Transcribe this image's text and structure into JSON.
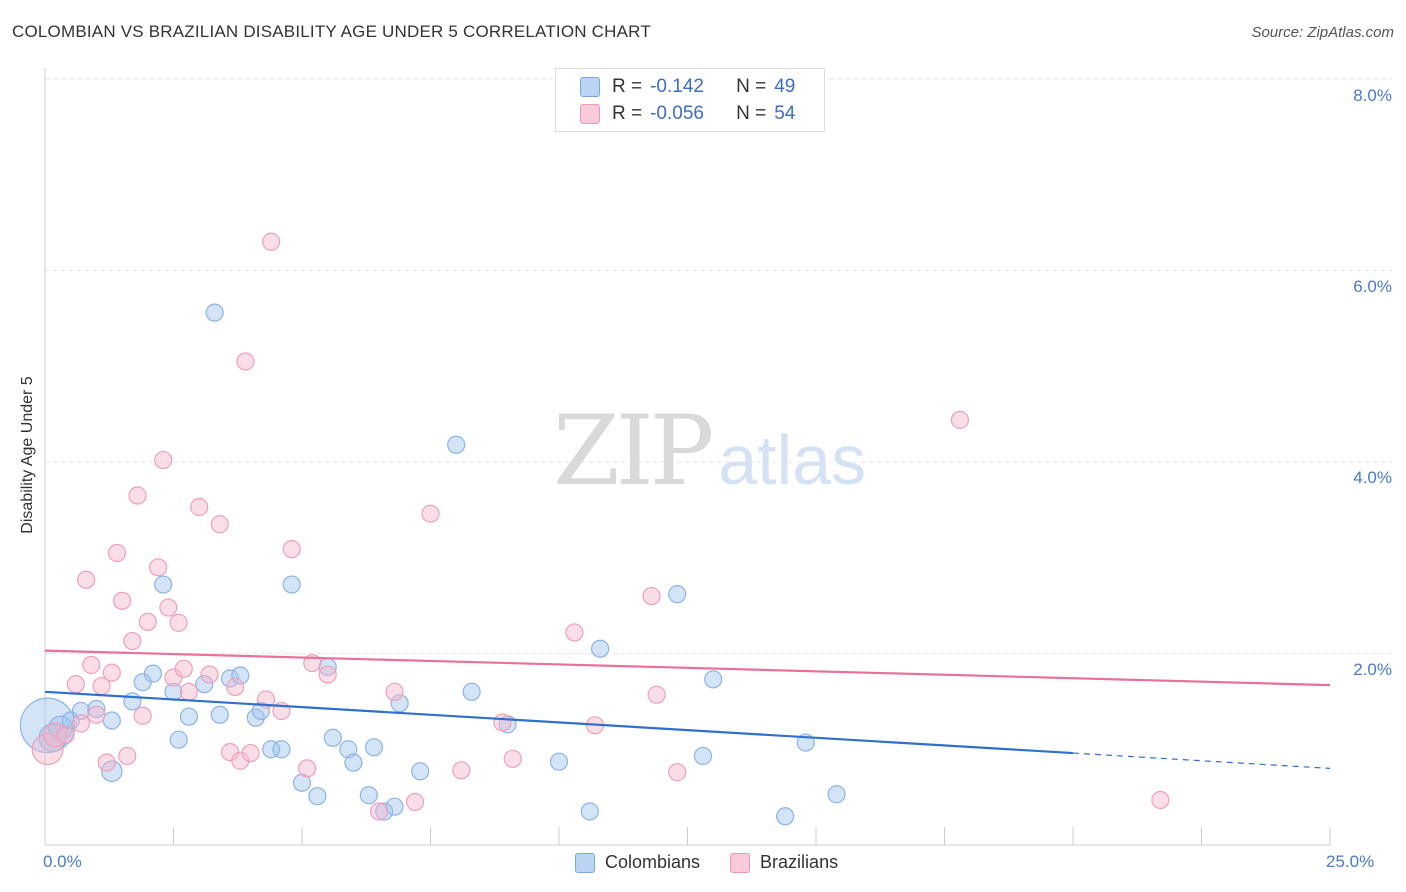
{
  "title": "COLOMBIAN VS BRAZILIAN DISABILITY AGE UNDER 5 CORRELATION CHART",
  "source": "Source: ZipAtlas.com",
  "watermark": {
    "left": "ZIP",
    "right": "atlas"
  },
  "colors": {
    "colombians": "#9ec3ee",
    "colombians_line": "#2f6fce",
    "brazilians": "#f5b6c9",
    "brazilians_line": "#e8709a",
    "axis_text": "#4a7ac8"
  },
  "legend_stats": [
    {
      "series": "Colombians",
      "r_label": "R =",
      "r_value": "-0.142",
      "n_label": "N =",
      "n_value": "49"
    },
    {
      "series": "Brazilians",
      "r_label": "R =",
      "r_value": "-0.056",
      "n_label": "N =",
      "n_value": "54"
    }
  ],
  "chart_data": {
    "type": "scatter",
    "title": "COLOMBIAN VS BRAZILIAN DISABILITY AGE UNDER 5 CORRELATION CHART",
    "xlabel": "",
    "ylabel": "Disability Age Under 5",
    "xlim": [
      0,
      25
    ],
    "ylim": [
      0,
      8
    ],
    "x_tick_labels": [
      "0.0%",
      "25.0%"
    ],
    "y_tick_labels": [
      "2.0%",
      "4.0%",
      "6.0%",
      "8.0%"
    ],
    "y_ticks": [
      2,
      4,
      6,
      8
    ],
    "grid": true,
    "legend_position": "bottom",
    "series": [
      {
        "name": "Colombians",
        "r": -0.142,
        "n": 49,
        "trend": {
          "x0": 0,
          "y0": 1.6,
          "x1": 25,
          "y1": 0.8,
          "solid_until": 20
        },
        "points": [
          [
            0.05,
            1.25,
            3.2
          ],
          [
            0.15,
            1.12,
            1.6
          ],
          [
            0.3,
            1.22,
            1.4
          ],
          [
            0.5,
            1.3,
            1.0
          ],
          [
            0.7,
            1.4,
            1.0
          ],
          [
            1.0,
            1.42,
            1.0
          ],
          [
            1.3,
            1.3,
            1.0
          ],
          [
            1.3,
            0.77,
            1.2
          ],
          [
            1.7,
            1.5,
            1.0
          ],
          [
            1.9,
            1.7,
            1.0
          ],
          [
            2.1,
            1.79,
            1.0
          ],
          [
            2.3,
            2.72,
            1.0
          ],
          [
            2.5,
            1.6,
            1.0
          ],
          [
            2.6,
            1.1,
            1.0
          ],
          [
            2.8,
            1.34,
            1.0
          ],
          [
            3.1,
            1.68,
            1.0
          ],
          [
            3.3,
            5.56,
            1.0
          ],
          [
            3.4,
            1.36,
            1.0
          ],
          [
            3.6,
            1.74,
            1.0
          ],
          [
            3.8,
            1.77,
            1.0
          ],
          [
            4.1,
            1.33,
            1.0
          ],
          [
            4.2,
            1.4,
            1.0
          ],
          [
            4.4,
            1.0,
            1.0
          ],
          [
            4.6,
            1.0,
            1.0
          ],
          [
            4.8,
            2.72,
            1.0
          ],
          [
            5.0,
            0.65,
            1.0
          ],
          [
            5.3,
            0.51,
            1.0
          ],
          [
            5.5,
            1.86,
            1.0
          ],
          [
            5.6,
            1.12,
            1.0
          ],
          [
            5.9,
            1.0,
            1.0
          ],
          [
            6.0,
            0.86,
            1.0
          ],
          [
            6.3,
            0.52,
            1.0
          ],
          [
            6.4,
            1.02,
            1.0
          ],
          [
            6.6,
            0.35,
            1.0
          ],
          [
            6.8,
            0.4,
            1.0
          ],
          [
            6.9,
            1.48,
            1.0
          ],
          [
            7.3,
            0.77,
            1.0
          ],
          [
            8.0,
            4.18,
            1.0
          ],
          [
            8.3,
            1.6,
            1.0
          ],
          [
            9.0,
            1.26,
            1.0
          ],
          [
            10.0,
            0.87,
            1.0
          ],
          [
            10.6,
            0.35,
            1.0
          ],
          [
            10.8,
            2.05,
            1.0
          ],
          [
            12.3,
            2.62,
            1.0
          ],
          [
            12.8,
            0.93,
            1.0
          ],
          [
            13.0,
            1.73,
            1.0
          ],
          [
            14.4,
            0.3,
            1.0
          ],
          [
            14.8,
            1.07,
            1.0
          ],
          [
            15.4,
            0.53,
            1.0
          ]
        ]
      },
      {
        "name": "Brazilians",
        "r": -0.056,
        "n": 54,
        "trend": {
          "x0": 0,
          "y0": 2.03,
          "x1": 25,
          "y1": 1.67,
          "solid_until": 25
        },
        "points": [
          [
            0.05,
            1.0,
            1.8
          ],
          [
            0.2,
            1.15,
            1.4
          ],
          [
            0.4,
            1.15,
            1.0
          ],
          [
            0.6,
            1.68,
            1.0
          ],
          [
            0.7,
            1.27,
            1.0
          ],
          [
            0.8,
            2.77,
            1.0
          ],
          [
            0.9,
            1.88,
            1.0
          ],
          [
            1.0,
            1.36,
            1.0
          ],
          [
            1.1,
            1.66,
            1.0
          ],
          [
            1.2,
            0.86,
            1.0
          ],
          [
            1.3,
            1.8,
            1.0
          ],
          [
            1.4,
            3.05,
            1.0
          ],
          [
            1.5,
            2.55,
            1.0
          ],
          [
            1.6,
            0.93,
            1.0
          ],
          [
            1.7,
            2.13,
            1.0
          ],
          [
            1.8,
            3.65,
            1.0
          ],
          [
            1.9,
            1.35,
            1.0
          ],
          [
            2.0,
            2.33,
            1.0
          ],
          [
            2.2,
            2.9,
            1.0
          ],
          [
            2.3,
            4.02,
            1.0
          ],
          [
            2.4,
            2.48,
            1.0
          ],
          [
            2.5,
            1.75,
            1.0
          ],
          [
            2.6,
            2.32,
            1.0
          ],
          [
            2.7,
            1.84,
            1.0
          ],
          [
            2.8,
            1.6,
            1.0
          ],
          [
            3.0,
            3.53,
            1.0
          ],
          [
            3.2,
            1.78,
            1.0
          ],
          [
            3.4,
            3.35,
            1.0
          ],
          [
            3.6,
            0.97,
            1.0
          ],
          [
            3.7,
            1.65,
            1.0
          ],
          [
            3.8,
            0.88,
            1.0
          ],
          [
            3.9,
            5.05,
            1.0
          ],
          [
            4.0,
            0.96,
            1.0
          ],
          [
            4.3,
            1.52,
            1.0
          ],
          [
            4.4,
            6.3,
            1.0
          ],
          [
            4.6,
            1.4,
            1.0
          ],
          [
            4.8,
            3.09,
            1.0
          ],
          [
            5.1,
            0.8,
            1.0
          ],
          [
            5.2,
            1.9,
            1.0
          ],
          [
            5.5,
            1.78,
            1.0
          ],
          [
            6.5,
            0.35,
            1.0
          ],
          [
            6.8,
            1.6,
            1.0
          ],
          [
            7.2,
            0.45,
            1.0
          ],
          [
            7.5,
            3.46,
            1.0
          ],
          [
            8.1,
            0.78,
            1.0
          ],
          [
            8.9,
            1.28,
            1.0
          ],
          [
            9.1,
            0.9,
            1.0
          ],
          [
            10.3,
            2.22,
            1.0
          ],
          [
            10.7,
            1.25,
            1.0
          ],
          [
            11.8,
            2.6,
            1.0
          ],
          [
            11.9,
            1.57,
            1.0
          ],
          [
            12.3,
            0.76,
            1.0
          ],
          [
            17.8,
            4.44,
            1.0
          ],
          [
            21.7,
            0.47,
            1.0
          ]
        ]
      }
    ]
  }
}
